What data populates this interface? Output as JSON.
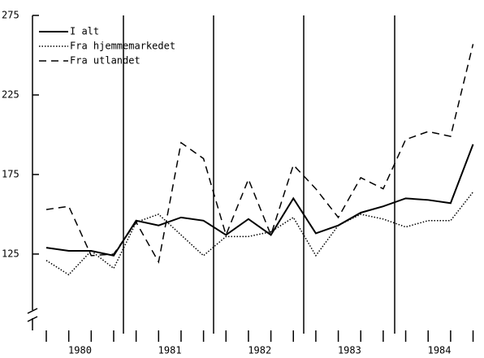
{
  "chart_data": {
    "type": "line",
    "categories": [
      null,
      null,
      null,
      null,
      null,
      null,
      null,
      null,
      null,
      null,
      null,
      null,
      null,
      null,
      null,
      null,
      null,
      null,
      null,
      null
    ],
    "year_labels": [
      "1980",
      "1981",
      "1982",
      "1983",
      "1984"
    ],
    "series": [
      {
        "name": "I alt",
        "color": "#000000",
        "style": "solid",
        "values": [
          129,
          127,
          127,
          124,
          146,
          143,
          148,
          146,
          137,
          147,
          137,
          160,
          138,
          143,
          151,
          155,
          160,
          159,
          157,
          194
        ]
      },
      {
        "name": "Fra hjemmemarkedet",
        "color": "#000000",
        "style": "dotted",
        "values": [
          121,
          112,
          127,
          116,
          145,
          150,
          137,
          124,
          136,
          136,
          139,
          148,
          124,
          143,
          150,
          147,
          142,
          146,
          146,
          164
        ]
      },
      {
        "name": "Fra utlandet",
        "color": "#000000",
        "style": "dashed",
        "values": [
          153,
          155,
          124,
          125,
          145,
          120,
          195,
          185,
          137,
          172,
          137,
          181,
          166,
          148,
          173,
          166,
          197,
          202,
          199,
          257
        ]
      }
    ],
    "ylim": [
      77,
      275
    ],
    "yticks": [
      125,
      175,
      225,
      275
    ],
    "legend": "top-left"
  }
}
